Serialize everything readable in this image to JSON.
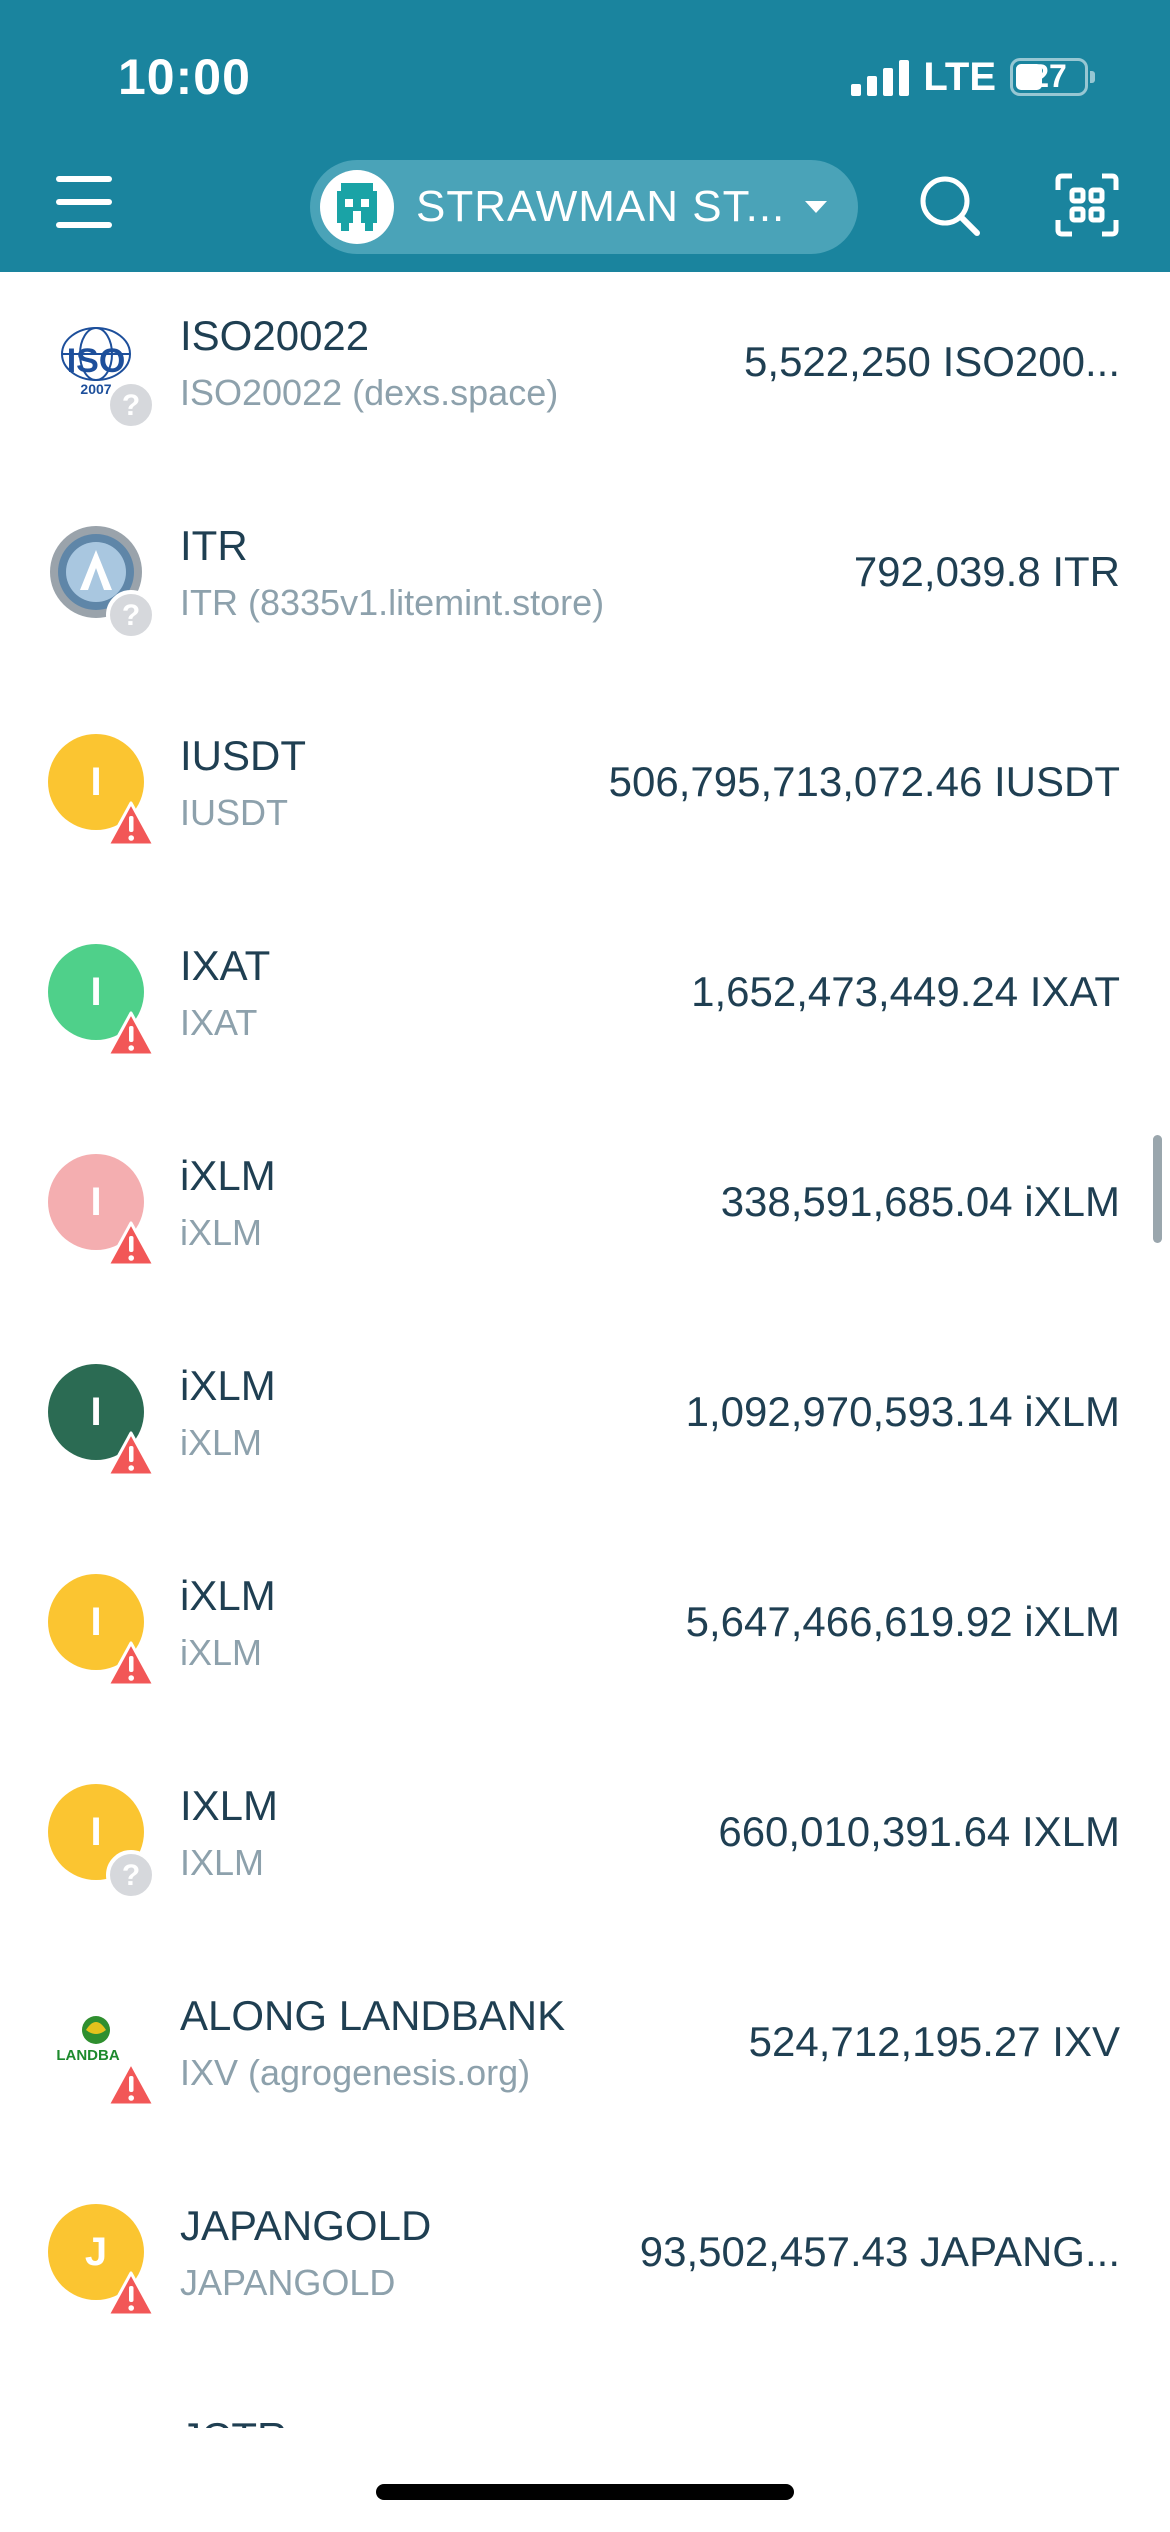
{
  "status_bar": {
    "time": "10:00",
    "network": "LTE",
    "battery": "27"
  },
  "header": {
    "menu_icon": "hamburger-icon",
    "wallet_name": "STRAWMAN ST...",
    "search_icon": "search-icon",
    "scan_icon": "qr-scan-icon"
  },
  "assets": [
    {
      "code": "ISO20022",
      "issuer": "ISO20022 (dexs.space)",
      "balance": "5,522,250 ISO200...",
      "icon": "iso-logo",
      "icon_letter": "",
      "icon_color": "#ffffff",
      "badge": "question"
    },
    {
      "code": "ITR",
      "issuer": "ITR (8335v1.litemint.store)",
      "balance": "792,039.8 ITR",
      "icon": "itr-logo",
      "icon_letter": "",
      "icon_color": "#5f86a8",
      "badge": "question"
    },
    {
      "code": "IUSDT",
      "issuer": "IUSDT",
      "balance": "506,795,713,072.46 IUSDT",
      "icon": "letter",
      "icon_letter": "I",
      "icon_color": "#fbc531",
      "badge": "warning"
    },
    {
      "code": "IXAT",
      "issuer": "IXAT",
      "balance": "1,652,473,449.24 IXAT",
      "icon": "letter",
      "icon_letter": "I",
      "icon_color": "#4fd08a",
      "badge": "warning"
    },
    {
      "code": "iXLM",
      "issuer": "iXLM",
      "balance": "338,591,685.04 iXLM",
      "icon": "letter",
      "icon_letter": "I",
      "icon_color": "#f4aeb0",
      "badge": "warning"
    },
    {
      "code": "iXLM",
      "issuer": "iXLM",
      "balance": "1,092,970,593.14 iXLM",
      "icon": "letter",
      "icon_letter": "I",
      "icon_color": "#2b6b53",
      "badge": "warning"
    },
    {
      "code": "iXLM",
      "issuer": "iXLM",
      "balance": "5,647,466,619.92 iXLM",
      "icon": "letter",
      "icon_letter": "I",
      "icon_color": "#fbc531",
      "badge": "warning"
    },
    {
      "code": "IXLM",
      "issuer": "IXLM",
      "balance": "660,010,391.64 IXLM",
      "icon": "letter",
      "icon_letter": "I",
      "icon_color": "#fbc531",
      "badge": "question"
    },
    {
      "code": "ALONG LANDBANK",
      "issuer": "IXV (agrogenesis.org)",
      "balance": "524,712,195.27 IXV",
      "icon": "landbank-logo",
      "icon_letter": "",
      "icon_color": "#ffffff",
      "badge": "warning"
    },
    {
      "code": "JAPANGOLD",
      "issuer": "JAPANGOLD",
      "balance": "93,502,457.43 JAPANG...",
      "icon": "letter",
      "icon_letter": "J",
      "icon_color": "#fbc531",
      "badge": "warning"
    }
  ],
  "partial_next_code": "JCTR",
  "logo_text": {
    "iso_top": "ISO",
    "iso_year": "2007",
    "landbank": "LANDBA"
  }
}
